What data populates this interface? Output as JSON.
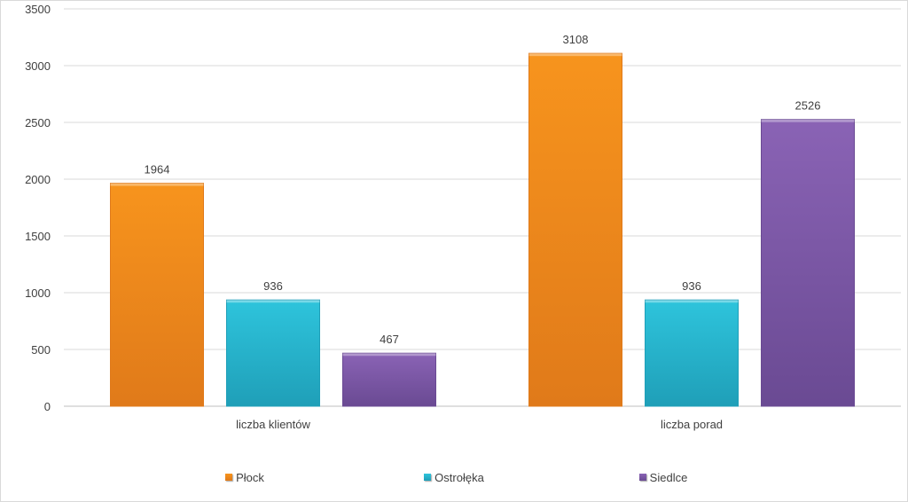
{
  "chart_data": {
    "type": "bar",
    "categories": [
      "liczba klientów",
      "liczba porad"
    ],
    "series": [
      {
        "name": "Płock",
        "values": [
          1964,
          3108
        ],
        "color": "#f7941d",
        "color_dark": "#e07a1a"
      },
      {
        "name": "Ostrołęka",
        "values": [
          936,
          936
        ],
        "color": "#2ec4dc",
        "color_dark": "#1f9fb8"
      },
      {
        "name": "Siedlce",
        "values": [
          467,
          2526
        ],
        "color": "#8a63b5",
        "color_dark": "#6a4a93"
      }
    ],
    "ylim": [
      0,
      3500
    ],
    "yticks": [
      0,
      500,
      1000,
      1500,
      2000,
      2500,
      3000,
      3500
    ],
    "grid": true,
    "legend_position": "bottom"
  }
}
